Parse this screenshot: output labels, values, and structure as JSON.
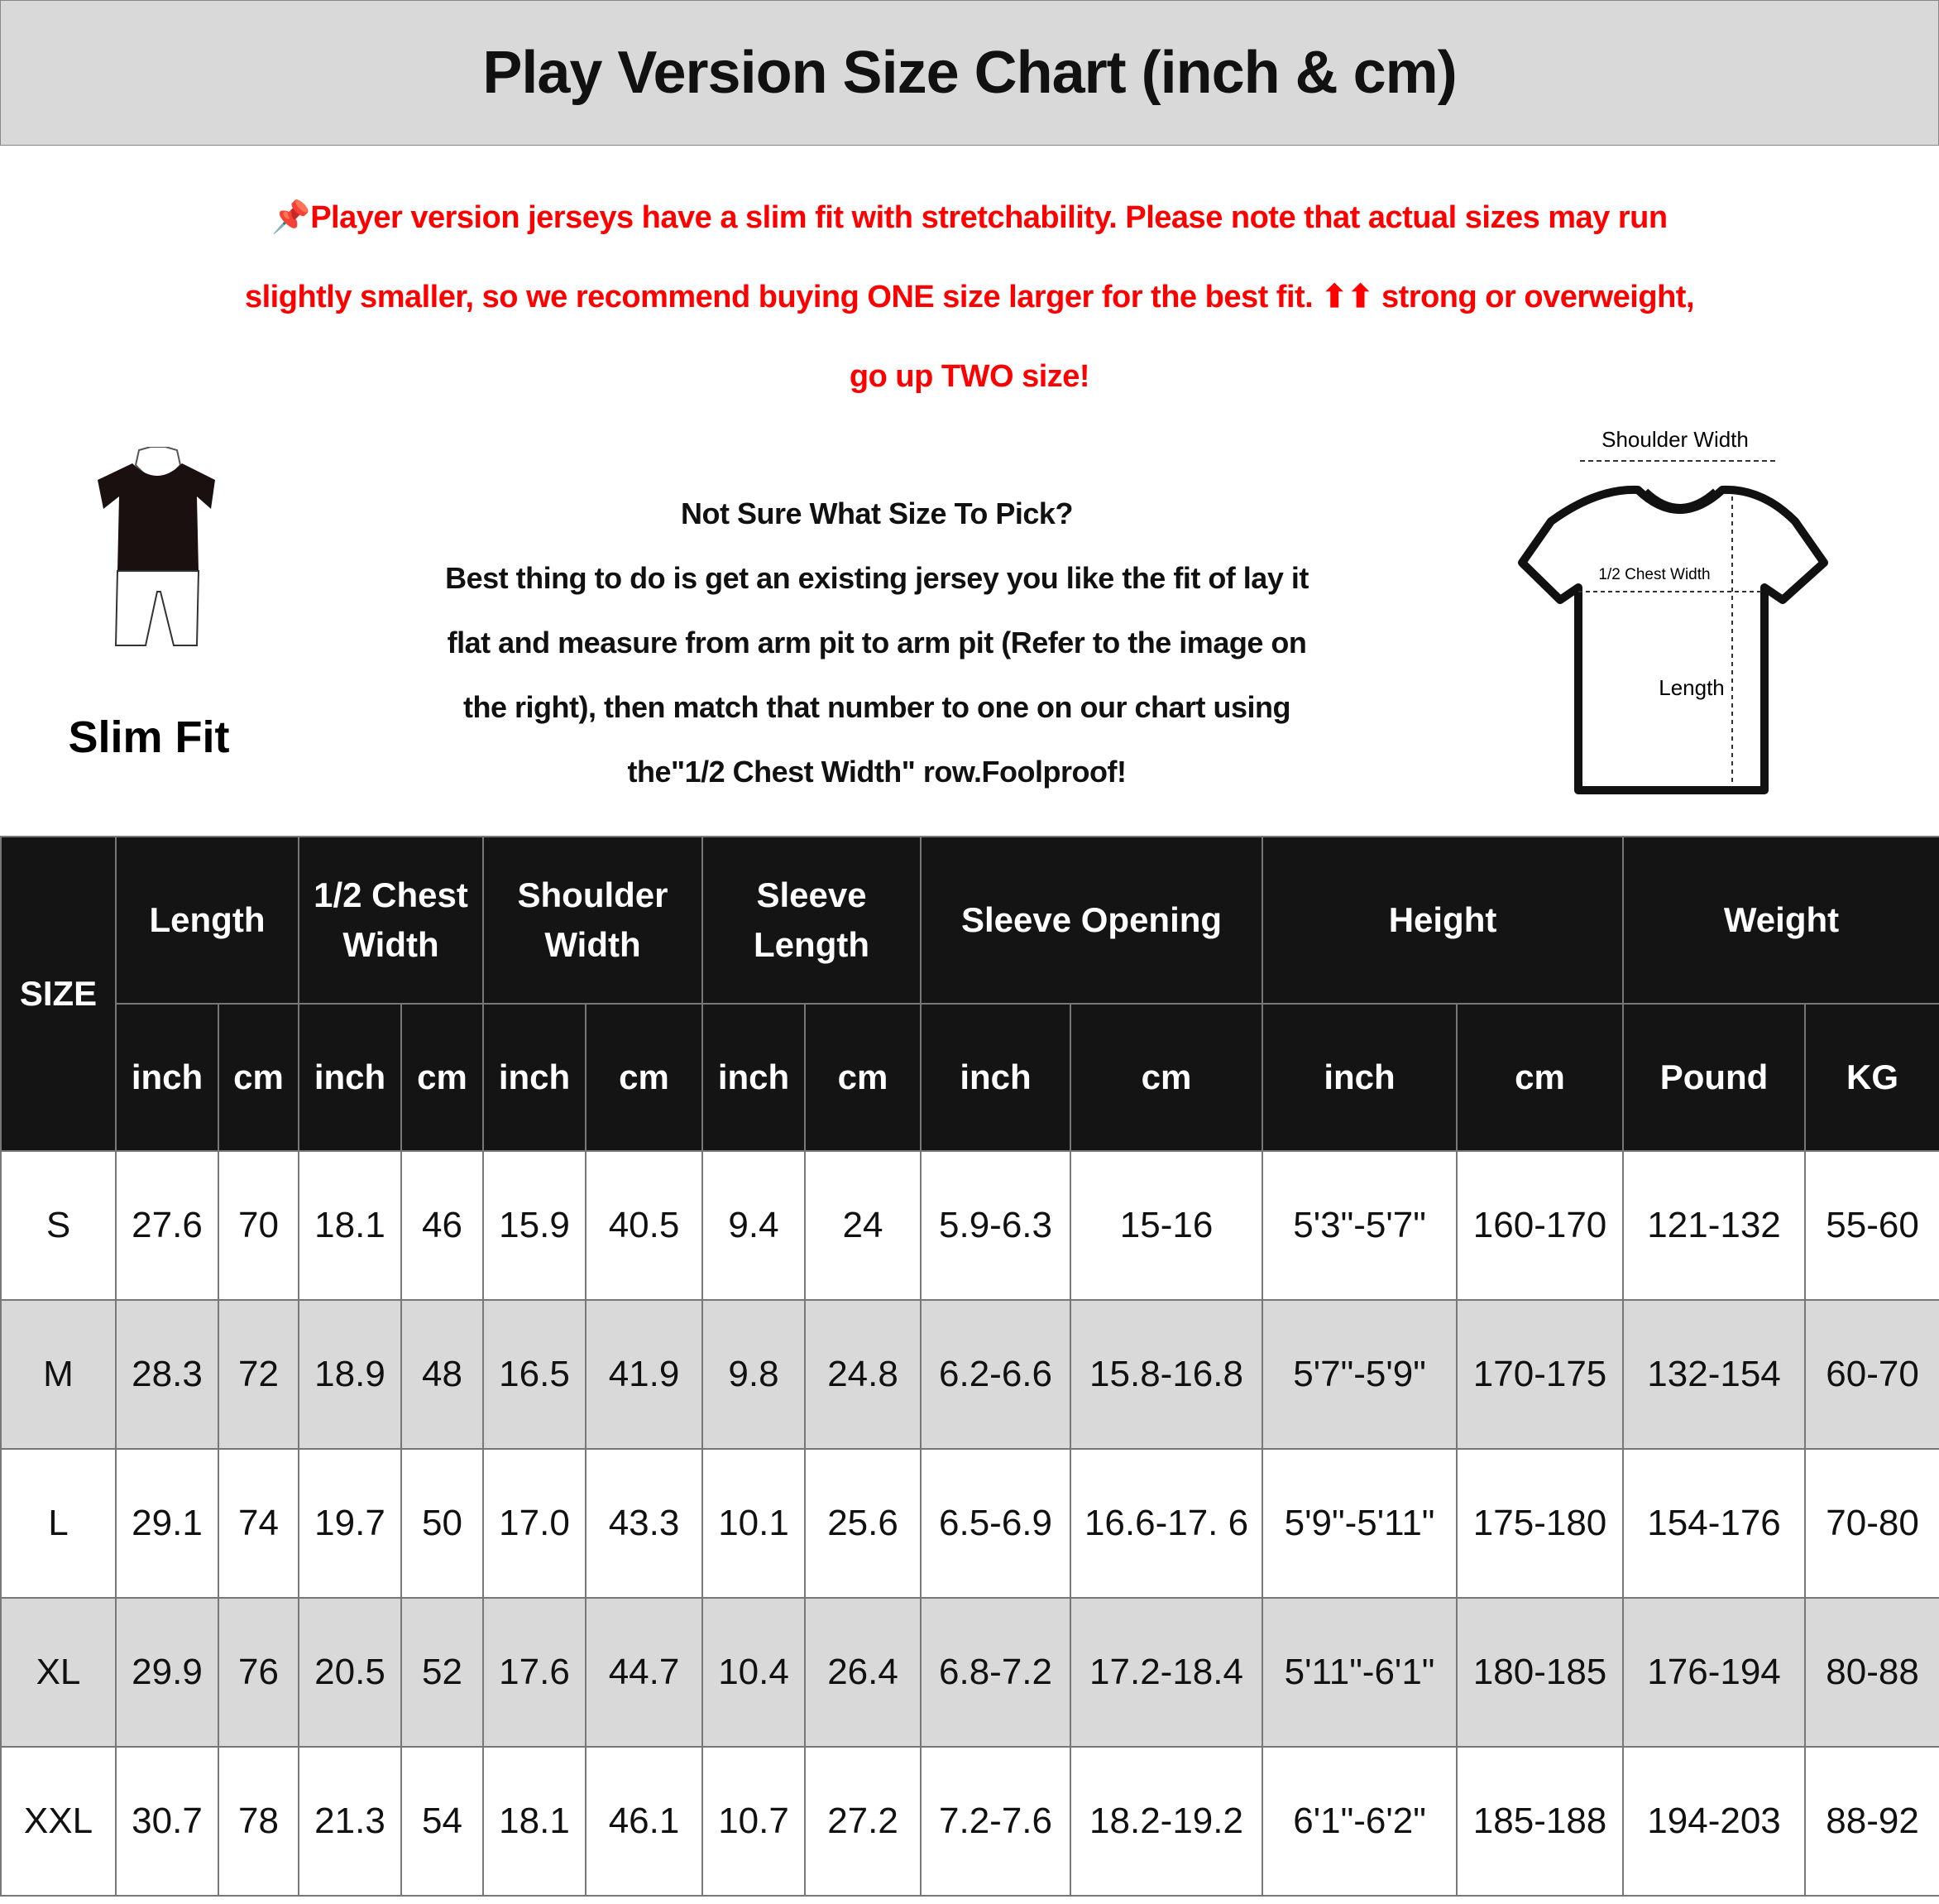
{
  "title": "Play Version Size Chart (inch & cm)",
  "notice": {
    "icon": "pushpin-icon",
    "color": "#ff0000",
    "lines": [
      "📌Player version jerseys have a slim fit with stretchability. Please note that actual sizes may run",
      "slightly smaller, so we recommend buying ONE size larger for the best fit. ⬆⬆ strong or overweight,",
      "go up TWO size!"
    ]
  },
  "slim_fit_label": "Slim Fit",
  "guide": {
    "lines": [
      "Not Sure What Size To Pick?",
      "Best thing to do is get an existing jersey you like the fit of lay it",
      "flat and measure from arm pit to arm pit (Refer to the image on",
      "the right), then match that number to one on our chart using",
      "the\"1/2 Chest Width\" row.Foolproof!"
    ]
  },
  "diagram": {
    "shoulder_width": "Shoulder Width",
    "chest_width": "1/2 Chest Width",
    "length": "Length"
  },
  "table": {
    "size_header": "SIZE",
    "groups": [
      "Length",
      "1/2 Chest Width",
      "Shoulder Width",
      "Sleeve Length",
      "Sleeve Opening",
      "Height",
      "Weight"
    ],
    "group_lines": [
      [
        "Length"
      ],
      [
        "1/2 Chest",
        "Width"
      ],
      [
        "Shoulder",
        "Width"
      ],
      [
        "Sleeve",
        "Length"
      ],
      [
        "Sleeve Opening"
      ],
      [
        "Height"
      ],
      [
        "Weight"
      ]
    ],
    "units": [
      "inch",
      "cm",
      "inch",
      "cm",
      "inch",
      "cm",
      "inch",
      "cm",
      "inch",
      "cm",
      "inch",
      "cm",
      "Pound",
      "KG"
    ],
    "rows": [
      [
        "S",
        "27.6",
        "70",
        "18.1",
        "46",
        "15.9",
        "40.5",
        "9.4",
        "24",
        "5.9-6.3",
        "15-16",
        "5'3\"-5'7\"",
        "160-170",
        "121-132",
        "55-60"
      ],
      [
        "M",
        "28.3",
        "72",
        "18.9",
        "48",
        "16.5",
        "41.9",
        "9.8",
        "24.8",
        "6.2-6.6",
        "15.8-16.8",
        "5'7\"-5'9\"",
        "170-175",
        "132-154",
        "60-70"
      ],
      [
        "L",
        "29.1",
        "74",
        "19.7",
        "50",
        "17.0",
        "43.3",
        "10.1",
        "25.6",
        "6.5-6.9",
        "16.6-17. 6",
        "5'9\"-5'11\"",
        "175-180",
        "154-176",
        "70-80"
      ],
      [
        "XL",
        "29.9",
        "76",
        "20.5",
        "52",
        "17.6",
        "44.7",
        "10.4",
        "26.4",
        "6.8-7.2",
        "17.2-18.4",
        "5'11\"-6'1\"",
        "180-185",
        "176-194",
        "80-88"
      ],
      [
        "XXL",
        "30.7",
        "78",
        "21.3",
        "54",
        "18.1",
        "46.1",
        "10.7",
        "27.2",
        "7.2-7.6",
        "18.2-19.2",
        "6'1\"-6'2\"",
        "185-188",
        "194-203",
        "88-92"
      ]
    ]
  }
}
